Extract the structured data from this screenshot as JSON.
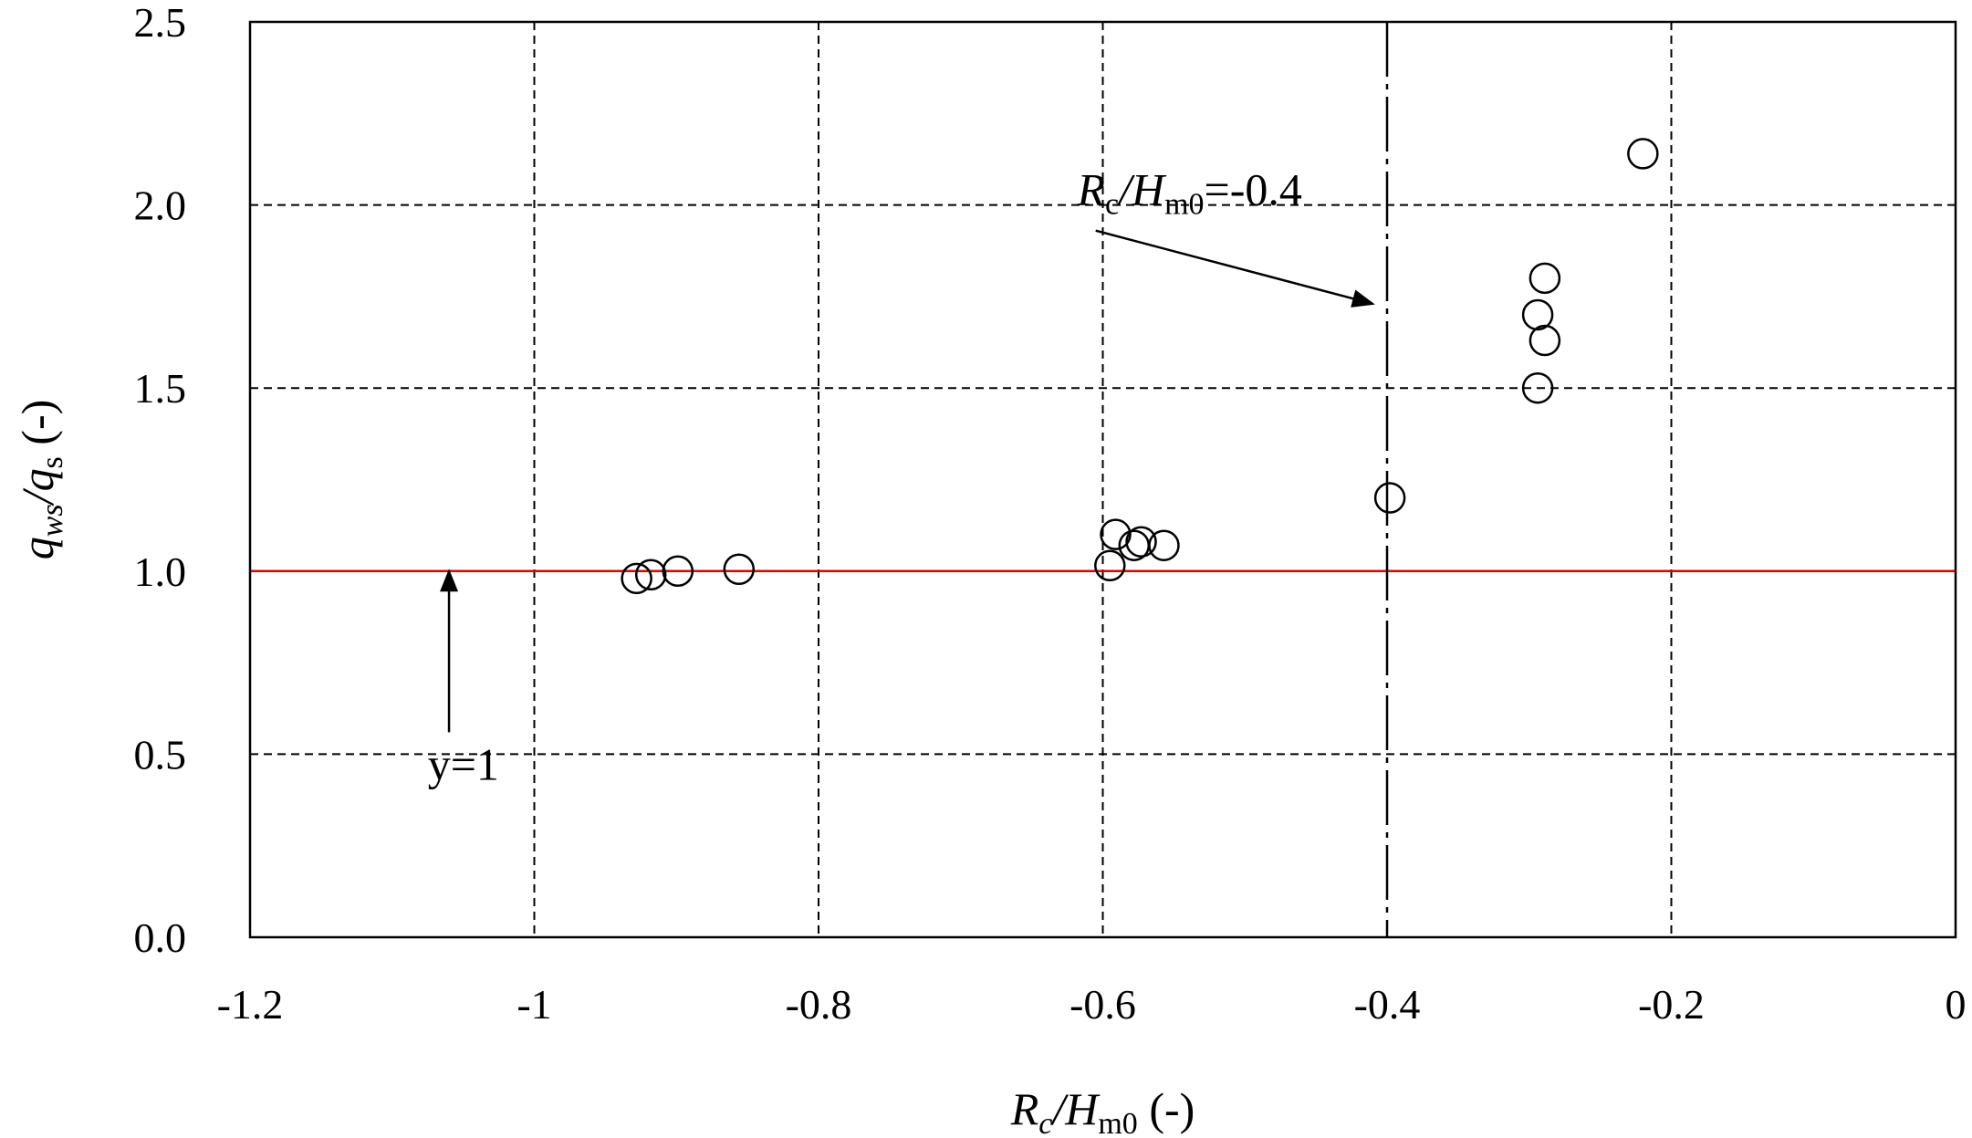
{
  "chart_data": {
    "type": "scatter",
    "title": "",
    "xlabel": {
      "main": "R",
      "sub1": "c",
      "mid": "/H",
      "sub2": "m0",
      "suffix": " (-)"
    },
    "ylabel": {
      "main": "q",
      "sub1": "ws",
      "mid": "/q",
      "sub2": "s",
      "suffix": " (-)"
    },
    "xlim": [
      -1.2,
      0
    ],
    "ylim": [
      0,
      2.5
    ],
    "x_ticks": [
      -1.2,
      -1,
      -0.8,
      -0.6,
      -0.4,
      -0.2,
      0
    ],
    "x_tick_labels": [
      "-1.2",
      "-1",
      "-0.8",
      "-0.6",
      "-0.4",
      "-0.2",
      "0"
    ],
    "y_ticks": [
      0,
      0.5,
      1,
      1.5,
      2,
      2.5
    ],
    "y_tick_labels": [
      "0.0",
      "0.5",
      "1.0",
      "1.5",
      "2.0",
      "2.5"
    ],
    "grid": true,
    "marker": "open-circle",
    "points": [
      {
        "x": -0.928,
        "y": 0.98
      },
      {
        "x": -0.918,
        "y": 0.99
      },
      {
        "x": -0.899,
        "y": 1.0
      },
      {
        "x": -0.856,
        "y": 1.005
      },
      {
        "x": -0.595,
        "y": 1.015
      },
      {
        "x": -0.591,
        "y": 1.1
      },
      {
        "x": -0.578,
        "y": 1.07
      },
      {
        "x": -0.573,
        "y": 1.08
      },
      {
        "x": -0.557,
        "y": 1.07
      },
      {
        "x": -0.398,
        "y": 1.2
      },
      {
        "x": -0.294,
        "y": 1.7
      },
      {
        "x": -0.289,
        "y": 1.8
      },
      {
        "x": -0.289,
        "y": 1.63
      },
      {
        "x": -0.294,
        "y": 1.5
      },
      {
        "x": -0.22,
        "y": 2.14
      }
    ],
    "reference_lines": [
      {
        "orientation": "horizontal",
        "value": 1,
        "color": "#e00000",
        "style": "solid"
      },
      {
        "orientation": "vertical",
        "value": -0.4,
        "color": "#000000",
        "style": "long-dash"
      }
    ],
    "annotations": [
      {
        "id": "y1",
        "text": "y=1",
        "text_at": {
          "x": -1.075,
          "y": 0.43
        },
        "arrow_from": {
          "x": -1.06,
          "y": 0.56
        },
        "arrow_to": {
          "x": -1.06,
          "y": 1.0
        }
      },
      {
        "id": "rc",
        "text_parts": {
          "main": "R",
          "sub1": "c",
          "mid": "/H",
          "sub2": "m0",
          "suffix": "=-0.4"
        },
        "text_at": {
          "x": -0.618,
          "y": 2.0
        },
        "arrow_from": {
          "x": -0.605,
          "y": 1.93
        },
        "arrow_to": {
          "x": -0.41,
          "y": 1.73
        }
      }
    ]
  }
}
